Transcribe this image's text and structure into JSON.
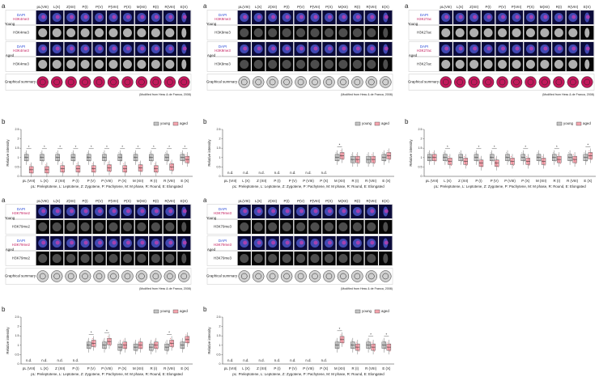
{
  "panels": [
    {
      "grid": {
        "letter": "a",
        "stages": [
          "pL(VIII)",
          "L(X)",
          "Z(XII)",
          "P(I)",
          "P(V)",
          "P(VIII)",
          "P(X)",
          "M(XII)",
          "R(I)",
          "R(VIII)",
          "E(X)"
        ],
        "young": "Young",
        "aged": "Aged",
        "dapi": "DAPI",
        "marker": "H3K4me3",
        "summary": "Graphical summary",
        "credit": "(Modified from Hess & de Franca, 2008)",
        "summary_color": "#c2185b"
      },
      "chart": {
        "type": "box",
        "letter": "b",
        "ylabel": "Relative intensity",
        "categories": [
          "pL (VIII)",
          "L (X)",
          "Z (XII)",
          "P (I)",
          "P (V)",
          "P (VIII)",
          "P (X)",
          "M (XII)",
          "R (I)",
          "R (VIII)",
          "E (X)"
        ],
        "ylim": [
          0,
          2.5
        ],
        "yticks": [
          0,
          0.5,
          1,
          1.5,
          2,
          2.5
        ],
        "series": [
          {
            "name": "young",
            "color": "#9e9e9e",
            "values": [
              1,
              1,
              1,
              1,
              1,
              1,
              1,
              1,
              1,
              1,
              1
            ]
          },
          {
            "name": "aged",
            "color": "#f06a7a",
            "values": [
              0.35,
              0.35,
              0.4,
              0.4,
              0.4,
              0.45,
              0.4,
              0.45,
              0.4,
              0.5,
              0.9
            ]
          }
        ],
        "annotations": [
          "*",
          "*",
          "*",
          "*",
          "*",
          "*",
          "*",
          "*",
          "*",
          "*",
          "*"
        ],
        "nd_label": "n.d.",
        "caption": "pL: Preleptotene, L: Leptotene, Z: Zygotene, P: Pachytene, M: M phase, R: Round, E: Elongated"
      }
    },
    {
      "grid": {
        "letter": "a",
        "stages": [
          "pL(VIII)",
          "L(X)",
          "Z(XII)",
          "P(I)",
          "P(V)",
          "P(VIII)",
          "P(X)",
          "M(XII)",
          "R(I)",
          "R(VIII)",
          "E(X)"
        ],
        "young": "Young",
        "aged": "Aged",
        "dapi": "DAPI",
        "marker": "H3K9me3",
        "summary": "Graphical summary",
        "credit": "(Modified from Hess & de Franca, 2008)",
        "summary_color": "#d0d0d0"
      },
      "chart": {
        "type": "box",
        "letter": "b",
        "ylabel": "Relative intensity",
        "categories": [
          "pL (VIII)",
          "L (X)",
          "Z (XII)",
          "P (I)",
          "P (V)",
          "P (VIII)",
          "P (X)",
          "M (XII)",
          "R (I)",
          "R (VIII)",
          "E (X)"
        ],
        "ylim": [
          0,
          2.5
        ],
        "yticks": [
          0,
          0.5,
          1,
          1.5,
          2,
          2.5
        ],
        "series": [
          {
            "name": "young",
            "color": "#9e9e9e",
            "values": [
              null,
              null,
              null,
              null,
              null,
              null,
              null,
              1,
              0.9,
              0.9,
              1
            ]
          },
          {
            "name": "aged",
            "color": "#f06a7a",
            "values": [
              null,
              null,
              null,
              null,
              null,
              null,
              null,
              1.1,
              0.9,
              0.9,
              1.1
            ]
          }
        ],
        "annotations": [
          null,
          null,
          null,
          null,
          null,
          null,
          null,
          "*",
          null,
          null,
          null
        ],
        "nd_label": "n.d.",
        "caption": "pL: Preleptotene, L: Leptotene, Z: Zygotene, P: Pachytene, M: M phase, R: Round, E: Elongated"
      }
    },
    {
      "grid": {
        "letter": "a",
        "stages": [
          "pL(VIII)",
          "L(X)",
          "Z(XII)",
          "P(I)",
          "P(V)",
          "P(VIII)",
          "P(X)",
          "M(XII)",
          "R(I)",
          "R(VIII)",
          "E(X)"
        ],
        "young": "Young",
        "aged": "Aged",
        "dapi": "DAPI",
        "marker": "H3K27ac",
        "summary": "Graphical summary",
        "credit": "(Modified from Hess & de Franca, 2008)",
        "summary_color": "#c2185b"
      },
      "chart": {
        "type": "box",
        "letter": "b",
        "ylabel": "Relative intensity",
        "categories": [
          "pL (VIII)",
          "L (X)",
          "Z (XII)",
          "P (I)",
          "P (V)",
          "P (VIII)",
          "P (X)",
          "M (XII)",
          "R (I)",
          "R (VIII)",
          "E (X)"
        ],
        "ylim": [
          0,
          2.5
        ],
        "yticks": [
          0,
          0.5,
          1,
          1.5,
          2,
          2.5
        ],
        "series": [
          {
            "name": "young",
            "color": "#9e9e9e",
            "values": [
              1,
              1,
              1,
              1,
              1,
              1,
              1,
              1,
              1,
              1,
              1
            ]
          },
          {
            "name": "aged",
            "color": "#f06a7a",
            "values": [
              1,
              0.8,
              0.8,
              0.7,
              0.7,
              0.8,
              0.8,
              0.8,
              0.9,
              0.9,
              1.1
            ]
          }
        ],
        "annotations": [
          null,
          "*",
          null,
          "*",
          "*",
          null,
          "*",
          null,
          "*",
          null,
          "*"
        ],
        "nd_label": "n.d.",
        "caption": "pL: Preleptotene, L: Leptotene, Z: Zygotene, P: Pachytene, M: M phase, R: Round, E: Elongated"
      }
    },
    {
      "grid": {
        "letter": "a",
        "stages": [
          "pL(VIII)",
          "L(X)",
          "Z(XII)",
          "P(I)",
          "P(V)",
          "P(VIII)",
          "P(X)",
          "M(XII)",
          "R(I)",
          "R(VIII)",
          "E(X)"
        ],
        "young": "Young",
        "aged": "Aged",
        "dapi": "DAPI",
        "marker": "H3K79me2",
        "summary": "Graphical summary",
        "credit": "(Modified from Hess & de Franca, 2008)",
        "summary_color": "#d0d0d0"
      },
      "chart": {
        "type": "box",
        "letter": "b",
        "ylabel": "Relative intensity",
        "categories": [
          "pL (VIII)",
          "L (X)",
          "Z (XII)",
          "P (I)",
          "P (V)",
          "P (VIII)",
          "P (X)",
          "M (XII)",
          "R (I)",
          "R (VIII)",
          "E (X)"
        ],
        "ylim": [
          0,
          2.5
        ],
        "yticks": [
          0,
          0.5,
          1,
          1.5,
          2,
          2.5
        ],
        "series": [
          {
            "name": "young",
            "color": "#9e9e9e",
            "values": [
              null,
              null,
              null,
              null,
              1,
              1,
              0.9,
              0.9,
              0.9,
              0.9,
              1
            ]
          },
          {
            "name": "aged",
            "color": "#f06a7a",
            "values": [
              null,
              null,
              null,
              null,
              1.1,
              1.2,
              1,
              1,
              1,
              1.1,
              1.3
            ]
          }
        ],
        "annotations": [
          null,
          null,
          null,
          null,
          "*",
          "*",
          null,
          null,
          null,
          "*",
          null
        ],
        "nd_label": "n.d.",
        "caption": "pL: Preleptotene, L: Leptotene, Z: Zygotene, P: Pachytene, M: M phase, R: Round, E: Elongated"
      }
    },
    {
      "grid": {
        "letter": "a",
        "stages": [
          "pL(VIII)",
          "L(X)",
          "Z(XII)",
          "P(I)",
          "P(V)",
          "P(VIII)",
          "P(X)",
          "M(XII)",
          "R(I)",
          "R(VIII)",
          "E(X)"
        ],
        "young": "Young",
        "aged": "Aged",
        "dapi": "DAPI",
        "marker": "H3K79me3",
        "summary": "Graphical summary",
        "credit": "(Modified from Hess & de Franca, 2008)",
        "summary_color": "#d0d0d0"
      },
      "chart": {
        "type": "box",
        "letter": "b",
        "ylabel": "Relative intensity",
        "categories": [
          "pL (VIII)",
          "L (X)",
          "Z (XII)",
          "P (I)",
          "P (V)",
          "P (VIII)",
          "P (X)",
          "M (XII)",
          "R (I)",
          "R (VIII)",
          "E (X)"
        ],
        "ylim": [
          0,
          2.5
        ],
        "yticks": [
          0,
          0.5,
          1,
          1.5,
          2,
          2.5
        ],
        "series": [
          {
            "name": "young",
            "color": "#9e9e9e",
            "values": [
              null,
              null,
              null,
              null,
              null,
              null,
              null,
              1,
              1,
              1,
              1
            ]
          },
          {
            "name": "aged",
            "color": "#f06a7a",
            "values": [
              null,
              null,
              null,
              null,
              null,
              null,
              null,
              1.3,
              0.9,
              0.9,
              0.9
            ]
          }
        ],
        "annotations": [
          null,
          null,
          null,
          null,
          null,
          null,
          null,
          "*",
          null,
          "*",
          "*"
        ],
        "nd_label": "n.d.",
        "caption": "pL: Preleptotene, L: Leptotene, Z: Zygotene, P: Pachytene, M: M phase, R: Round, E: Elongated"
      }
    }
  ]
}
